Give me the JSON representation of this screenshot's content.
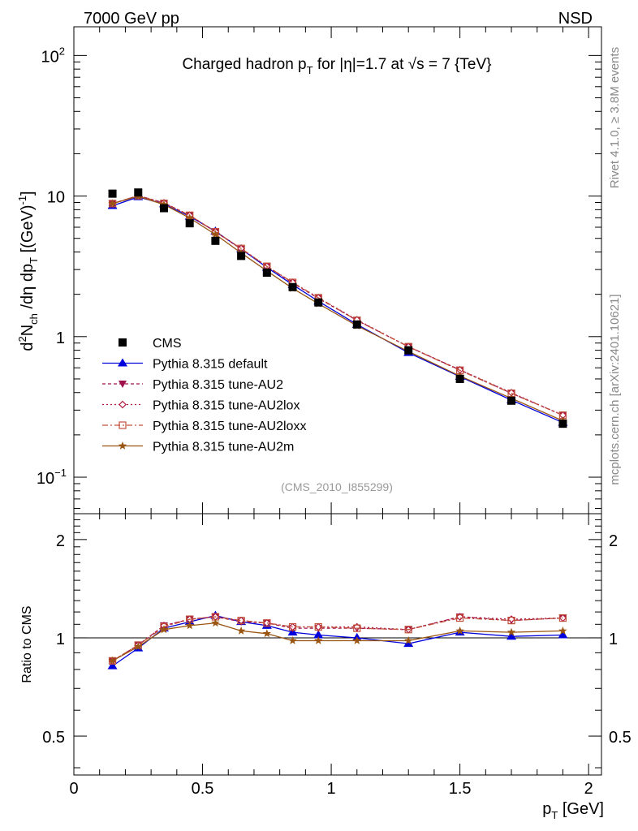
{
  "header": {
    "left": "7000 GeV pp",
    "right": "NSD"
  },
  "side_labels": {
    "rivet": "Rivet 4.1.0, ≥ 3.8M events",
    "mcplots": "mcplots.cern.ch [arXiv:2401.10621]"
  },
  "chart_data": {
    "type": "line",
    "title": "Charged hadron p_T for |η|=1.7 at √s = 7 {TeV}",
    "analysis_tag": "(CMS_2010_I855299)",
    "xlabel": "p_T [GeV]",
    "ylabel": "d²N_ch/dη dp_T [(GeV)⁻¹]",
    "ratio_ylabel": "Ratio to CMS",
    "xlim": [
      0,
      2.05
    ],
    "ylim": [
      0.055,
      160
    ],
    "ratio_ylim": [
      0.38,
      2.4
    ],
    "yscale": "log",
    "x_ticks": [
      0,
      0.5,
      1,
      1.5,
      2
    ],
    "x_tick_labels": [
      "0",
      "0.5",
      "1",
      "1.5",
      "2"
    ],
    "y_ticks": [
      0.1,
      1,
      10,
      100
    ],
    "y_tick_labels": [
      {
        "base": "10",
        "exp": "−1"
      },
      {
        "base": "1",
        "exp": ""
      },
      {
        "base": "10",
        "exp": ""
      },
      {
        "base": "10",
        "exp": "2"
      }
    ],
    "ratio_ticks": [
      0.5,
      1,
      2
    ],
    "ratio_tick_labels": [
      "0.5",
      "1",
      "2"
    ],
    "x": [
      0.15,
      0.25,
      0.35,
      0.45,
      0.55,
      0.65,
      0.75,
      0.85,
      0.95,
      1.1,
      1.3,
      1.5,
      1.7,
      1.9
    ],
    "reference": {
      "name": "CMS",
      "values": [
        10.4,
        10.6,
        8.2,
        6.4,
        4.8,
        3.75,
        2.85,
        2.25,
        1.75,
        1.22,
        0.8,
        0.5,
        0.35,
        0.24
      ]
    },
    "series": [
      {
        "name": "Pythia 8.315 default",
        "color": "#0000dd",
        "marker": "triangle-up",
        "dash": "none",
        "ratio": [
          0.82,
          0.93,
          1.07,
          1.12,
          1.17,
          1.12,
          1.09,
          1.04,
          1.02,
          1.0,
          0.96,
          1.04,
          1.01,
          1.02
        ]
      },
      {
        "name": "Pythia 8.315 tune-AU2",
        "color": "#a0104a",
        "marker": "triangle-down",
        "dash": "4,3",
        "ratio": [
          0.85,
          0.95,
          1.09,
          1.14,
          1.16,
          1.12,
          1.11,
          1.07,
          1.07,
          1.07,
          1.06,
          1.16,
          1.13,
          1.15
        ]
      },
      {
        "name": "Pythia 8.315 tune-AU2lox",
        "color": "#b01840",
        "marker": "diamond",
        "dash": "2,3",
        "ratio": [
          0.85,
          0.95,
          1.09,
          1.14,
          1.16,
          1.13,
          1.11,
          1.08,
          1.08,
          1.08,
          1.06,
          1.16,
          1.14,
          1.15
        ]
      },
      {
        "name": "Pythia 8.315 tune-AU2loxx",
        "color": "#c0503a",
        "marker": "square-open",
        "dash": "7,3,2,3",
        "ratio": [
          0.85,
          0.95,
          1.08,
          1.14,
          1.16,
          1.13,
          1.11,
          1.08,
          1.08,
          1.07,
          1.06,
          1.15,
          1.13,
          1.15
        ]
      },
      {
        "name": "Pythia 8.315 tune-AU2m",
        "color": "#9a5512",
        "marker": "star",
        "dash": "none",
        "ratio": [
          0.85,
          0.94,
          1.06,
          1.09,
          1.11,
          1.05,
          1.03,
          0.98,
          0.98,
          0.98,
          0.98,
          1.05,
          1.04,
          1.05
        ]
      }
    ]
  }
}
